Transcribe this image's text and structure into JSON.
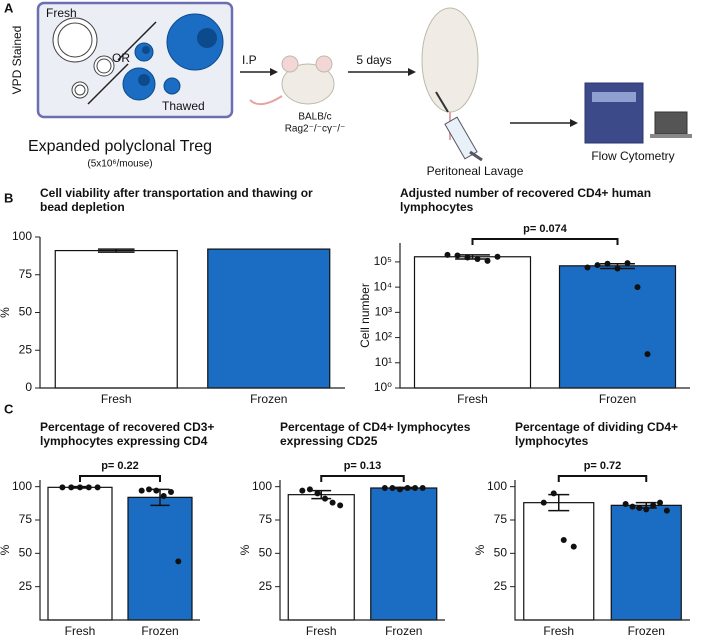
{
  "panel_a": {
    "label": "A",
    "stain": "VPD Stained",
    "fresh": "Fresh",
    "or": "OR",
    "thawed": "Thawed",
    "cells": "Expanded polyclonal Treg",
    "dose": "(5x10⁶/mouse)",
    "route": "I.P",
    "strain1": "BALB/c",
    "strain2": "Rag2⁻/⁻cγ⁻/⁻",
    "time": "5 days",
    "lavage": "Peritoneal Lavage",
    "readout": "Flow Cytometry"
  },
  "panel_labels": {
    "b": "B",
    "c": "C"
  },
  "chart_data": [
    {
      "type": "bar",
      "title": "Cell viability after transportation and thawing or bead depletion",
      "ylabel": "%",
      "categories": [
        "Fresh",
        "Frozen"
      ],
      "colors": [
        "#ffffff",
        "#1a6dc2"
      ],
      "values": [
        91,
        92
      ],
      "errors": [
        1,
        null
      ],
      "points": [
        [],
        []
      ],
      "ylim": [
        0,
        100
      ],
      "yticks": [
        0,
        25,
        50,
        75,
        100
      ]
    },
    {
      "type": "bar",
      "title": "Adjusted number of recovered CD4+ human lymphocytes",
      "ylabel": "Cell number",
      "log_scale": true,
      "categories": [
        "Fresh",
        "Frozen"
      ],
      "colors": [
        "#ffffff",
        "#1a6dc2"
      ],
      "values": [
        160000,
        70000
      ],
      "errors": [
        30000,
        15000
      ],
      "points": [
        [
          190000,
          180000,
          150000,
          130000,
          110000,
          160000
        ],
        [
          60000,
          75000,
          85000,
          55000,
          90000,
          10000,
          22
        ]
      ],
      "annotation": "p= 0.074",
      "ylim": [
        1,
        562341
      ],
      "yticks": [
        {
          "value": 1,
          "label": "10⁰"
        },
        {
          "value": 10,
          "label": "10¹"
        },
        {
          "value": 100,
          "label": "10²"
        },
        {
          "value": 1000,
          "label": "10³"
        },
        {
          "value": 10000,
          "label": "10⁴"
        },
        {
          "value": 100000,
          "label": "10⁵"
        }
      ]
    },
    {
      "type": "bar",
      "title": "Percentage of recovered CD3+ lymphocytes expressing CD4",
      "ylabel": "%",
      "categories": [
        "Fresh",
        "Frozen"
      ],
      "colors": [
        "#ffffff",
        "#1a6dc2"
      ],
      "values": [
        99.5,
        92
      ],
      "errors": [
        0.5,
        6
      ],
      "points": [
        [
          99.5,
          99.5,
          99.5,
          99.5,
          99.5
        ],
        [
          97,
          98,
          97,
          93,
          96,
          44
        ]
      ],
      "annotation": "p= 0.22",
      "ylim": [
        0,
        105
      ],
      "yticks": [
        25,
        50,
        75,
        100
      ]
    },
    {
      "type": "bar",
      "title": "Percentage of CD4+ lymphocytes expressing CD25",
      "ylabel": "%",
      "categories": [
        "Fresh",
        "Frozen"
      ],
      "colors": [
        "#ffffff",
        "#1a6dc2"
      ],
      "values": [
        94,
        99
      ],
      "errors": [
        3,
        0.5
      ],
      "points": [
        [
          97,
          98,
          95,
          91,
          88,
          86
        ],
        [
          99,
          99,
          98,
          99,
          99,
          99
        ]
      ],
      "annotation": "p= 0.13",
      "ylim": [
        0,
        105
      ],
      "yticks": [
        25,
        50,
        75,
        100
      ]
    },
    {
      "type": "bar",
      "title": "Percentage of dividing CD4+ lymphocytes",
      "ylabel": "%",
      "categories": [
        "Fresh",
        "Frozen"
      ],
      "colors": [
        "#ffffff",
        "#1a6dc2"
      ],
      "values": [
        88,
        86
      ],
      "errors": [
        6,
        2
      ],
      "points": [
        [
          88,
          95,
          60,
          55
        ],
        [
          87,
          85,
          84,
          83,
          86,
          88,
          82
        ]
      ],
      "annotation": "p= 0.72",
      "ylim": [
        0,
        105
      ],
      "yticks": [
        25,
        50,
        75,
        100
      ]
    }
  ]
}
